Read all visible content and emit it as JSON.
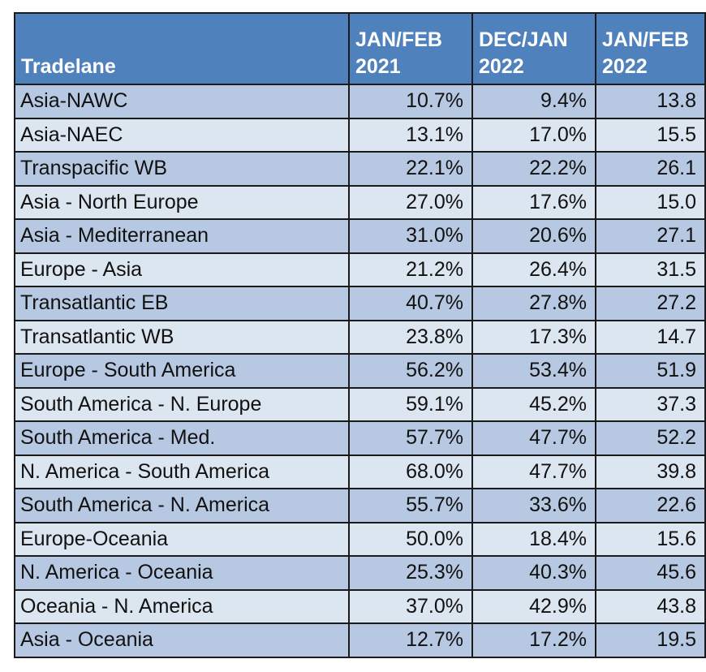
{
  "table": {
    "headers": [
      {
        "line1": "",
        "line2": "Tradelane"
      },
      {
        "line1": "JAN/FEB",
        "line2": "2021"
      },
      {
        "line1": "DEC/JAN",
        "line2": "2022"
      },
      {
        "line1": "JAN/FEB",
        "line2": "2022"
      }
    ],
    "rows": [
      [
        "Asia-NAWC",
        "10.7%",
        "9.4%",
        "13.8"
      ],
      [
        "Asia-NAEC",
        "13.1%",
        "17.0%",
        "15.5"
      ],
      [
        "Transpacific WB",
        "22.1%",
        "22.2%",
        "26.1"
      ],
      [
        "Asia - North Europe",
        "27.0%",
        "17.6%",
        "15.0"
      ],
      [
        "Asia - Mediterranean",
        "31.0%",
        "20.6%",
        "27.1"
      ],
      [
        "Europe - Asia",
        "21.2%",
        "26.4%",
        "31.5"
      ],
      [
        "Transatlantic EB",
        "40.7%",
        "27.8%",
        "27.2"
      ],
      [
        "Transatlantic WB",
        "23.8%",
        "17.3%",
        "14.7"
      ],
      [
        "Europe - South America",
        "56.2%",
        "53.4%",
        "51.9"
      ],
      [
        "South America - N. Europe",
        "59.1%",
        "45.2%",
        "37.3"
      ],
      [
        "South America - Med.",
        "57.7%",
        "47.7%",
        "52.2"
      ],
      [
        "N. America - South America",
        "68.0%",
        "47.7%",
        "39.8"
      ],
      [
        "South America - N. America",
        "55.7%",
        "33.6%",
        "22.6"
      ],
      [
        "Europe-Oceania",
        "50.0%",
        "18.4%",
        "15.6"
      ],
      [
        "N. America - Oceania",
        "25.3%",
        "40.3%",
        "45.6"
      ],
      [
        "Oceania - N. America",
        "37.0%",
        "42.9%",
        "43.8"
      ],
      [
        "Asia - Oceania",
        "12.7%",
        "17.2%",
        "19.5"
      ]
    ]
  },
  "colors": {
    "header_bg": "#4f81bd",
    "header_text": "#ffffff",
    "row_dark": "#b7c9e2",
    "row_light": "#dce6f1",
    "border": "#1a1a1a"
  }
}
